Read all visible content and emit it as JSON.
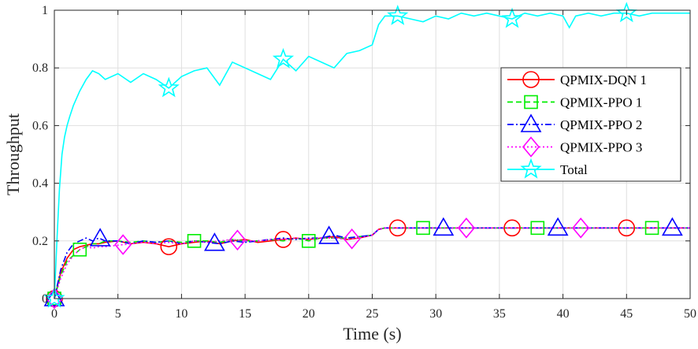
{
  "chart_data": {
    "type": "line",
    "title": "",
    "xlabel": "Time (s)",
    "ylabel": "Throughput",
    "xlim": [
      0,
      50
    ],
    "ylim": [
      0,
      1
    ],
    "xticks": [
      0,
      5,
      10,
      15,
      20,
      25,
      30,
      35,
      40,
      45,
      50
    ],
    "yticks": [
      0,
      0.2,
      0.4,
      0.6,
      0.8,
      1
    ],
    "ytick_labels": [
      "0",
      "0.2",
      "0.4",
      "0.6",
      "0.8",
      "1"
    ],
    "grid": true,
    "legend_position": "right",
    "series": [
      {
        "name": "QPMIX-DQN 1",
        "color": "#ff0000",
        "dash": "solid",
        "marker": "circle",
        "x": [
          0,
          0.5,
          1,
          1.5,
          2,
          2.5,
          3,
          3.5,
          4,
          5,
          6,
          7,
          8,
          9,
          10,
          11,
          12,
          13,
          14,
          15,
          16,
          17,
          18,
          19,
          20,
          21,
          22,
          23,
          24,
          25,
          25.5,
          26,
          27,
          28,
          30,
          32,
          34,
          36,
          38,
          40,
          42,
          44,
          46,
          48,
          50
        ],
        "y": [
          0,
          0.09,
          0.14,
          0.17,
          0.18,
          0.185,
          0.19,
          0.19,
          0.195,
          0.2,
          0.19,
          0.195,
          0.19,
          0.18,
          0.19,
          0.195,
          0.2,
          0.19,
          0.2,
          0.205,
          0.195,
          0.2,
          0.205,
          0.21,
          0.205,
          0.21,
          0.215,
          0.205,
          0.21,
          0.22,
          0.24,
          0.245,
          0.245,
          0.245,
          0.245,
          0.245,
          0.245,
          0.245,
          0.245,
          0.245,
          0.245,
          0.245,
          0.245,
          0.245,
          0.245
        ],
        "marker_x": [
          0,
          9,
          18,
          27,
          36,
          45
        ]
      },
      {
        "name": "QPMIX-PPO 1",
        "color": "#00ee00",
        "dash": "dashed",
        "marker": "square",
        "x": [
          0,
          0.5,
          1,
          1.5,
          2,
          2.5,
          3,
          3.5,
          4,
          5,
          6,
          7,
          8,
          9,
          10,
          11,
          12,
          13,
          14,
          15,
          16,
          17,
          18,
          19,
          20,
          21,
          22,
          23,
          24,
          25,
          25.5,
          26,
          27,
          28,
          30,
          32,
          34,
          36,
          38,
          40,
          42,
          44,
          46,
          48,
          50
        ],
        "y": [
          0,
          0.08,
          0.13,
          0.15,
          0.17,
          0.18,
          0.19,
          0.19,
          0.2,
          0.2,
          0.195,
          0.2,
          0.195,
          0.2,
          0.195,
          0.2,
          0.2,
          0.195,
          0.205,
          0.2,
          0.2,
          0.205,
          0.2,
          0.21,
          0.2,
          0.21,
          0.21,
          0.21,
          0.215,
          0.22,
          0.24,
          0.245,
          0.245,
          0.245,
          0.245,
          0.245,
          0.245,
          0.245,
          0.245,
          0.245,
          0.245,
          0.245,
          0.245,
          0.245,
          0.245
        ],
        "marker_x": [
          0,
          2,
          11,
          20,
          29,
          38,
          47
        ]
      },
      {
        "name": "QPMIX-PPO 2",
        "color": "#0000ff",
        "dash": "dashdot",
        "marker": "triangle",
        "x": [
          0,
          0.5,
          1,
          1.5,
          2,
          2.5,
          3,
          3.5,
          4,
          5,
          6,
          7,
          8,
          9,
          10,
          11,
          12,
          13,
          14,
          15,
          16,
          17,
          18,
          19,
          20,
          21,
          22,
          23,
          24,
          25,
          25.5,
          26,
          27,
          28,
          30,
          32,
          34,
          36,
          38,
          40,
          42,
          44,
          46,
          48,
          50
        ],
        "y": [
          0,
          0.1,
          0.16,
          0.19,
          0.2,
          0.21,
          0.2,
          0.21,
          0.2,
          0.2,
          0.19,
          0.2,
          0.195,
          0.2,
          0.19,
          0.2,
          0.195,
          0.19,
          0.2,
          0.195,
          0.2,
          0.205,
          0.21,
          0.205,
          0.21,
          0.21,
          0.22,
          0.21,
          0.215,
          0.22,
          0.24,
          0.245,
          0.245,
          0.245,
          0.245,
          0.245,
          0.245,
          0.245,
          0.245,
          0.245,
          0.245,
          0.245,
          0.245,
          0.245,
          0.245
        ],
        "marker_x": [
          0,
          3.6,
          12.6,
          21.6,
          30.6,
          39.6,
          48.6
        ]
      },
      {
        "name": "QPMIX-PPO 3",
        "color": "#ff00ff",
        "dash": "dotted",
        "marker": "diamond",
        "x": [
          0,
          0.5,
          1,
          1.5,
          2,
          2.5,
          3,
          3.5,
          4,
          5,
          6,
          7,
          8,
          9,
          10,
          11,
          12,
          13,
          14,
          15,
          16,
          17,
          18,
          19,
          20,
          21,
          22,
          23,
          24,
          25,
          25.5,
          26,
          27,
          28,
          30,
          32,
          34,
          36,
          38,
          40,
          42,
          44,
          46,
          48,
          50
        ],
        "y": [
          0,
          0.07,
          0.12,
          0.15,
          0.17,
          0.18,
          0.175,
          0.18,
          0.18,
          0.185,
          0.19,
          0.195,
          0.19,
          0.195,
          0.19,
          0.2,
          0.195,
          0.2,
          0.205,
          0.2,
          0.2,
          0.205,
          0.205,
          0.21,
          0.205,
          0.21,
          0.21,
          0.205,
          0.21,
          0.22,
          0.24,
          0.245,
          0.245,
          0.245,
          0.245,
          0.245,
          0.245,
          0.245,
          0.245,
          0.245,
          0.245,
          0.245,
          0.245,
          0.245,
          0.245
        ],
        "marker_x": [
          0,
          5.4,
          14.4,
          23.4,
          32.4,
          41.4
        ]
      },
      {
        "name": "Total",
        "color": "#00ffff",
        "dash": "solid",
        "marker": "star",
        "x": [
          0,
          0.2,
          0.4,
          0.6,
          0.8,
          1,
          1.2,
          1.5,
          2,
          2.5,
          3,
          3.5,
          4,
          5,
          6,
          7,
          8,
          9,
          10,
          11,
          12,
          13,
          14,
          15,
          16,
          17,
          18,
          19,
          20,
          21,
          22,
          23,
          24,
          25,
          25.5,
          26,
          27,
          28,
          29,
          30,
          31,
          32,
          33,
          34,
          35,
          36,
          37,
          38,
          39,
          40,
          40.5,
          41,
          42,
          43,
          44,
          45,
          46,
          47,
          48,
          49,
          50
        ],
        "y": [
          0,
          0.2,
          0.38,
          0.5,
          0.56,
          0.6,
          0.63,
          0.67,
          0.72,
          0.76,
          0.79,
          0.78,
          0.76,
          0.78,
          0.75,
          0.78,
          0.76,
          0.73,
          0.77,
          0.79,
          0.8,
          0.74,
          0.82,
          0.8,
          0.78,
          0.76,
          0.83,
          0.79,
          0.84,
          0.82,
          0.8,
          0.85,
          0.86,
          0.88,
          0.95,
          0.98,
          0.98,
          0.97,
          0.96,
          0.98,
          0.97,
          0.99,
          0.98,
          0.99,
          0.98,
          0.97,
          0.99,
          0.98,
          0.99,
          0.98,
          0.94,
          0.98,
          0.99,
          0.98,
          0.99,
          0.99,
          0.98,
          0.99,
          0.99,
          0.99,
          0.99
        ],
        "marker_x": [
          0,
          9,
          18,
          27,
          36,
          45
        ]
      }
    ]
  }
}
